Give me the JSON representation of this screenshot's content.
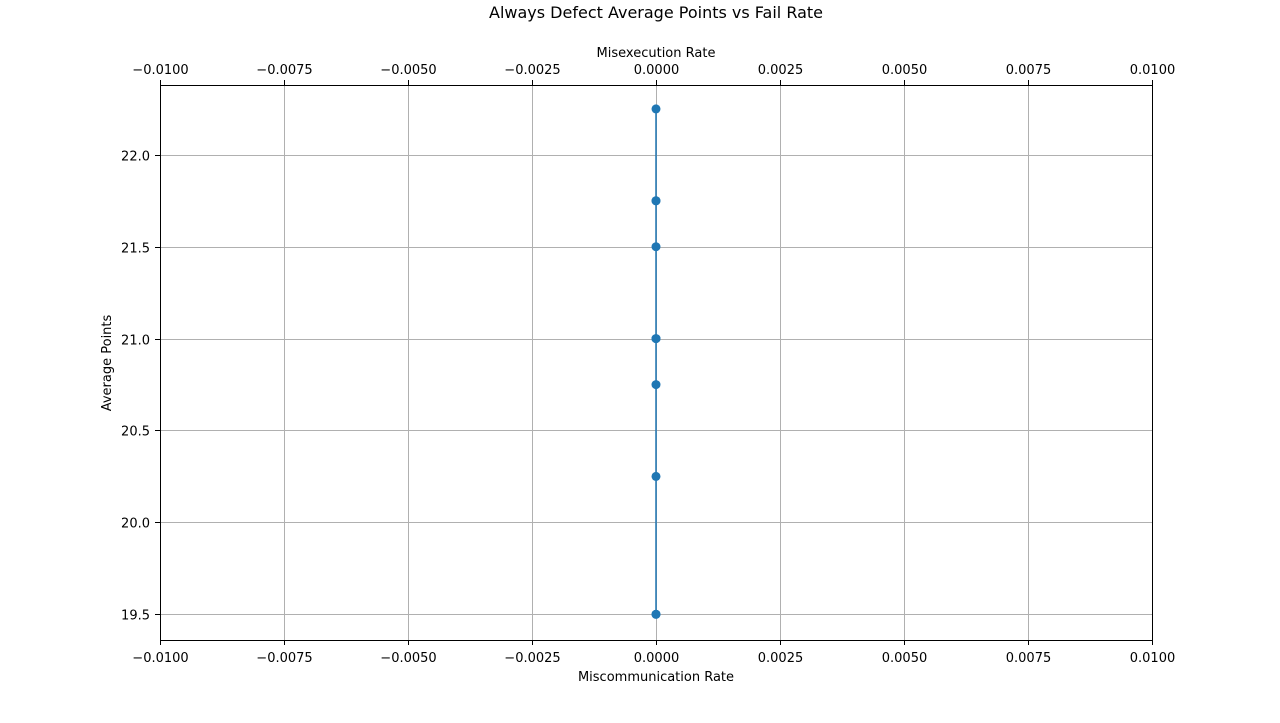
{
  "chart_data": {
    "type": "line",
    "title": "Always Defect Average Points vs Fail Rate",
    "xlabel": "Miscommunication Rate",
    "x2label": "Misexecution Rate",
    "ylabel": "Average Points",
    "xlim": [
      -0.01,
      0.01
    ],
    "ylim": [
      19.36,
      22.38
    ],
    "grid": true,
    "x_ticks": [
      "−0.0100",
      "−0.0075",
      "−0.0050",
      "−0.0025",
      "0.0000",
      "0.0025",
      "0.0050",
      "0.0075",
      "0.0100"
    ],
    "x_tick_values": [
      -0.01,
      -0.0075,
      -0.005,
      -0.0025,
      0,
      0.0025,
      0.005,
      0.0075,
      0.01
    ],
    "y_ticks": [
      "19.5",
      "20.0",
      "20.5",
      "21.0",
      "21.5",
      "22.0"
    ],
    "y_tick_values": [
      19.5,
      20.0,
      20.5,
      21.0,
      21.5,
      22.0
    ],
    "series": [
      {
        "color": "#1f77b4",
        "x": [
          0,
          0,
          0,
          0,
          0,
          0,
          0,
          0,
          0,
          0
        ],
        "y": [
          22.25,
          21.75,
          21.75,
          21.5,
          21.0,
          21.0,
          20.75,
          20.25,
          19.5,
          19.5
        ]
      }
    ]
  }
}
